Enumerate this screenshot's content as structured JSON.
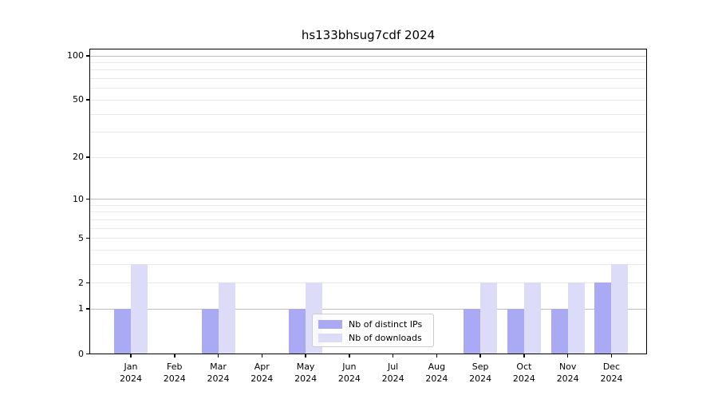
{
  "chart_data": {
    "type": "bar",
    "title": "hs133bhsug7cdf 2024",
    "yscale": "log1p",
    "ylim": [
      0,
      110
    ],
    "grid": true,
    "legend_position": "lower center",
    "x_tick_labels": [
      "Jan\n2024",
      "Feb\n2024",
      "Mar\n2024",
      "Apr\n2024",
      "May\n2024",
      "Jun\n2024",
      "Jul\n2024",
      "Aug\n2024",
      "Sep\n2024",
      "Oct\n2024",
      "Nov\n2024",
      "Dec\n2024"
    ],
    "categories": [
      "Jan 2024",
      "Feb 2024",
      "Mar 2024",
      "Apr 2024",
      "May 2024",
      "Jun 2024",
      "Jul 2024",
      "Aug 2024",
      "Sep 2024",
      "Oct 2024",
      "Nov 2024",
      "Dec 2024"
    ],
    "y_ticks": [
      0,
      1,
      2,
      5,
      10,
      20,
      50,
      100
    ],
    "major_gridlines": [
      1,
      10,
      100
    ],
    "minor_gridlines": [
      2,
      3,
      4,
      5,
      6,
      7,
      8,
      9,
      20,
      30,
      40,
      50,
      60,
      70,
      80,
      90
    ],
    "series": [
      {
        "name": "Nb of distinct IPs",
        "color": "#a9a9f4",
        "values": [
          1,
          0,
          1,
          0,
          1,
          0,
          0,
          0,
          1,
          1,
          1,
          2
        ]
      },
      {
        "name": "Nb of downloads",
        "color": "#dcdcf9",
        "values": [
          3,
          0,
          2,
          0,
          2,
          0,
          0,
          0,
          2,
          2,
          2,
          3
        ]
      }
    ]
  }
}
